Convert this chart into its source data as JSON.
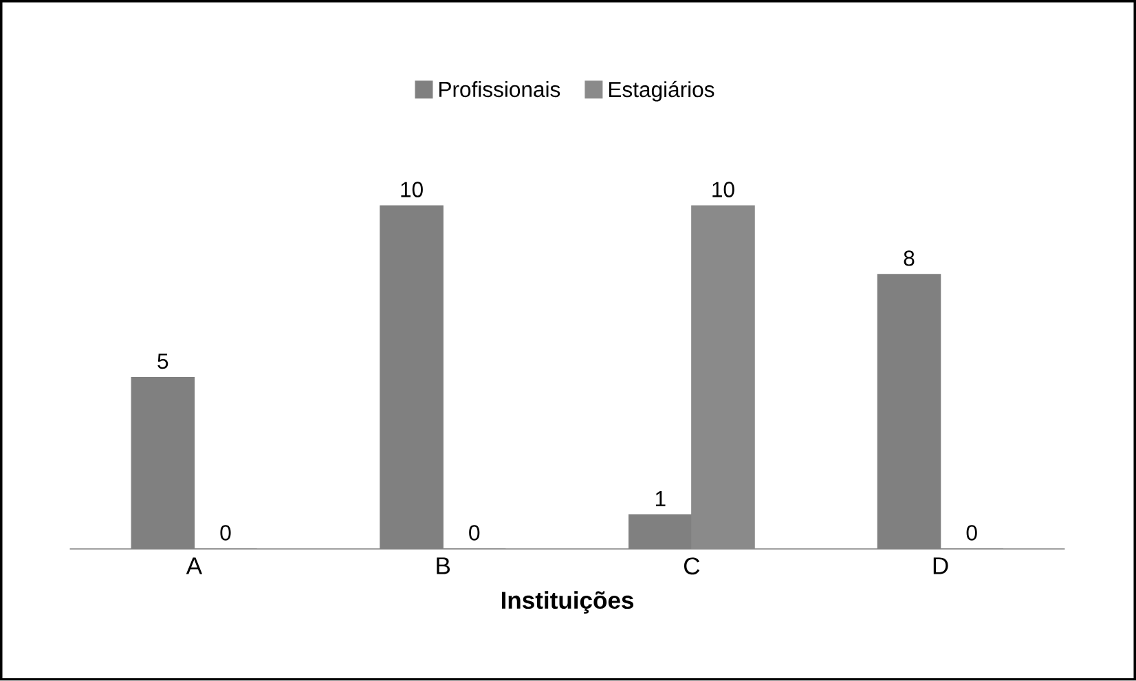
{
  "chart_data": {
    "type": "bar",
    "categories": [
      "A",
      "B",
      "C",
      "D"
    ],
    "series": [
      {
        "name": "Profissionais",
        "color": "#808080",
        "values": [
          5,
          10,
          1,
          8
        ]
      },
      {
        "name": "Estagiários",
        "color": "#8a8a8a",
        "values": [
          0,
          0,
          10,
          0
        ]
      }
    ],
    "xlabel": "Instituições",
    "data_labels": true,
    "legend": "top"
  }
}
